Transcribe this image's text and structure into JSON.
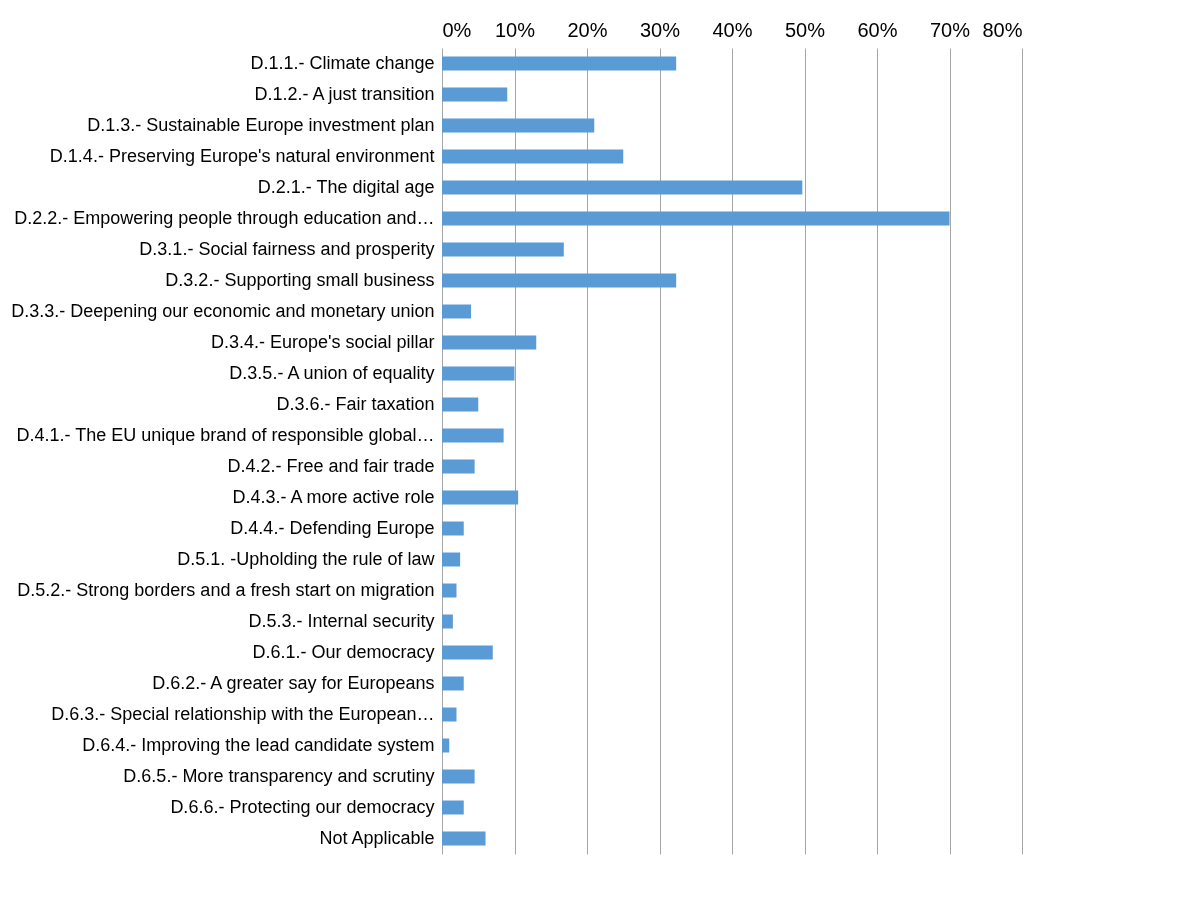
{
  "chart_data": {
    "type": "bar",
    "orientation": "horizontal",
    "categories": [
      "D.1.1.- Climate change",
      "D.1.2.- A just transition",
      "D.1.3.- Sustainable Europe investment plan",
      "D.1.4.- Preserving Europe's natural environment",
      "D.2.1.- The digital age",
      "D.2.2.- Empowering people through education and…",
      "D.3.1.- Social fairness and prosperity",
      "D.3.2.- Supporting small business",
      "D.3.3.- Deepening our economic and monetary union",
      "D.3.4.- Europe's social pillar",
      "D.3.5.- A union of equality",
      "D.3.6.- Fair taxation",
      "D.4.1.- The EU unique brand of responsible global…",
      "D.4.2.- Free and fair trade",
      "D.4.3.- A more active role",
      "D.4.4.- Defending Europe",
      "D.5.1. -Upholding the rule of law",
      "D.5.2.- Strong borders and a fresh start on migration",
      "D.5.3.- Internal security",
      "D.6.1.- Our democracy",
      "D.6.2.- A greater say for Europeans",
      "D.6.3.- Special relationship with the European…",
      "D.6.4.- Improving the lead candidate system",
      "D.6.5.- More transparency and scrutiny",
      "D.6.6.- Protecting our democracy",
      "Not Applicable"
    ],
    "values": [
      32.3,
      9,
      21,
      25,
      49.7,
      70,
      16.8,
      32.3,
      4,
      13,
      10,
      5,
      8.5,
      4.5,
      10.5,
      3,
      2.5,
      2,
      1.5,
      7,
      3,
      2,
      1,
      4.5,
      3,
      6
    ],
    "color": "#5b9bd5",
    "xlim": [
      0,
      80
    ],
    "xticks": [
      {
        "value": 0,
        "label": "0%"
      },
      {
        "value": 10,
        "label": "10%"
      },
      {
        "value": 20,
        "label": "20%"
      },
      {
        "value": 30,
        "label": "30%"
      },
      {
        "value": 40,
        "label": "40%"
      },
      {
        "value": 50,
        "label": "50%"
      },
      {
        "value": 60,
        "label": "60%"
      },
      {
        "value": 70,
        "label": "70%"
      },
      {
        "value": 80,
        "label": "80%"
      }
    ],
    "grid": "x"
  }
}
